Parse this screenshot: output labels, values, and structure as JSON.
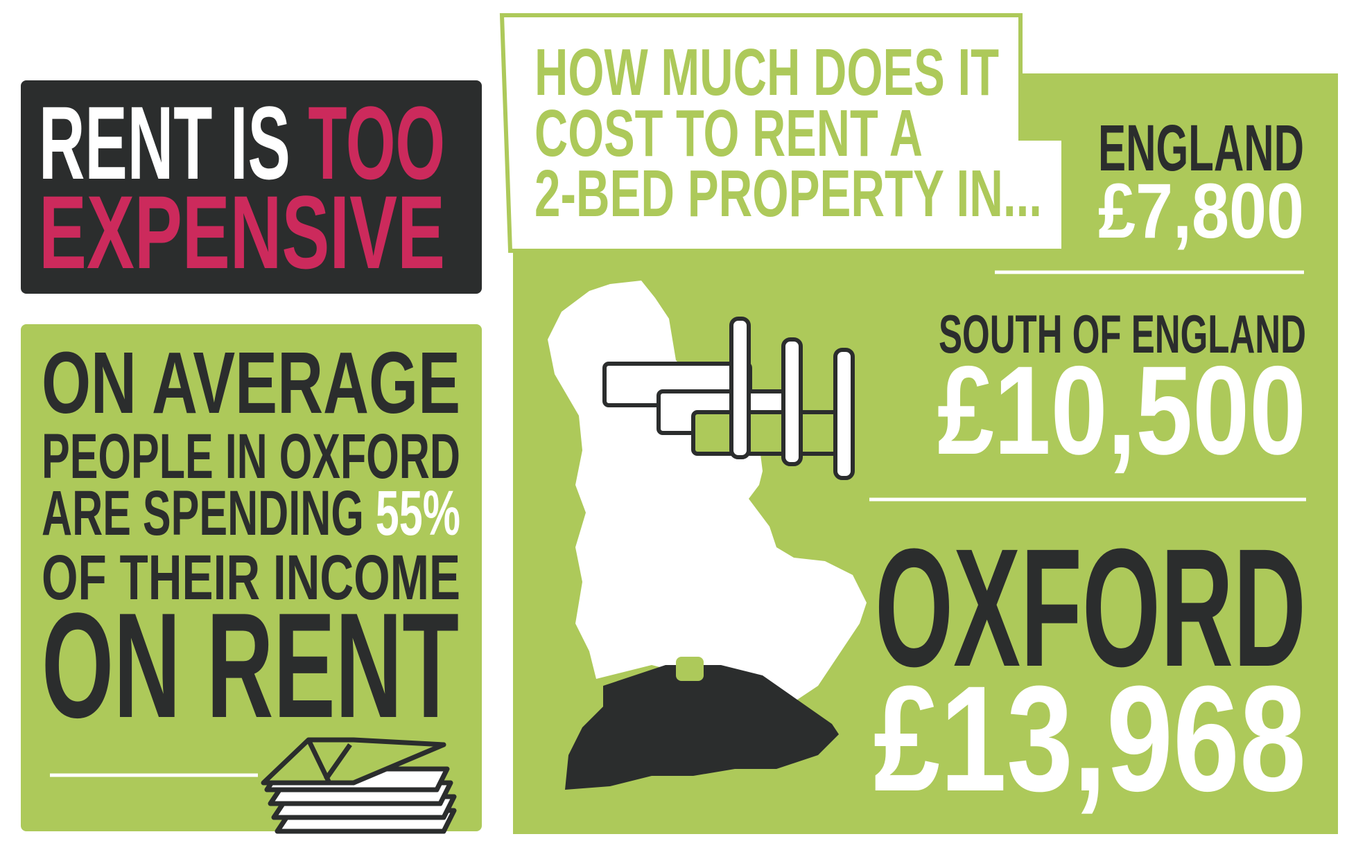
{
  "headline": {
    "line_1": "RENT IS",
    "line_1_highlight": "TOO",
    "line_2": "EXPENSIVE"
  },
  "average": {
    "line_1": "ON AVERAGE",
    "line_2": "PEOPLE IN OXFORD",
    "line_3": "ARE SPENDING",
    "line_3_highlight": "55%",
    "line_4": "OF THEIR INCOME",
    "line_5": "ON RENT"
  },
  "question": {
    "lines": [
      "HOW MUCH DOES IT",
      "COST TO RENT A",
      "2-BED PROPERTY IN..."
    ]
  },
  "costs": [
    {
      "place": "ENGLAND",
      "amount": "£7,800"
    },
    {
      "place": "SOUTH OF ENGLAND",
      "amount": "£10,500"
    },
    {
      "place": "OXFORD",
      "amount": "£13,968"
    }
  ]
}
